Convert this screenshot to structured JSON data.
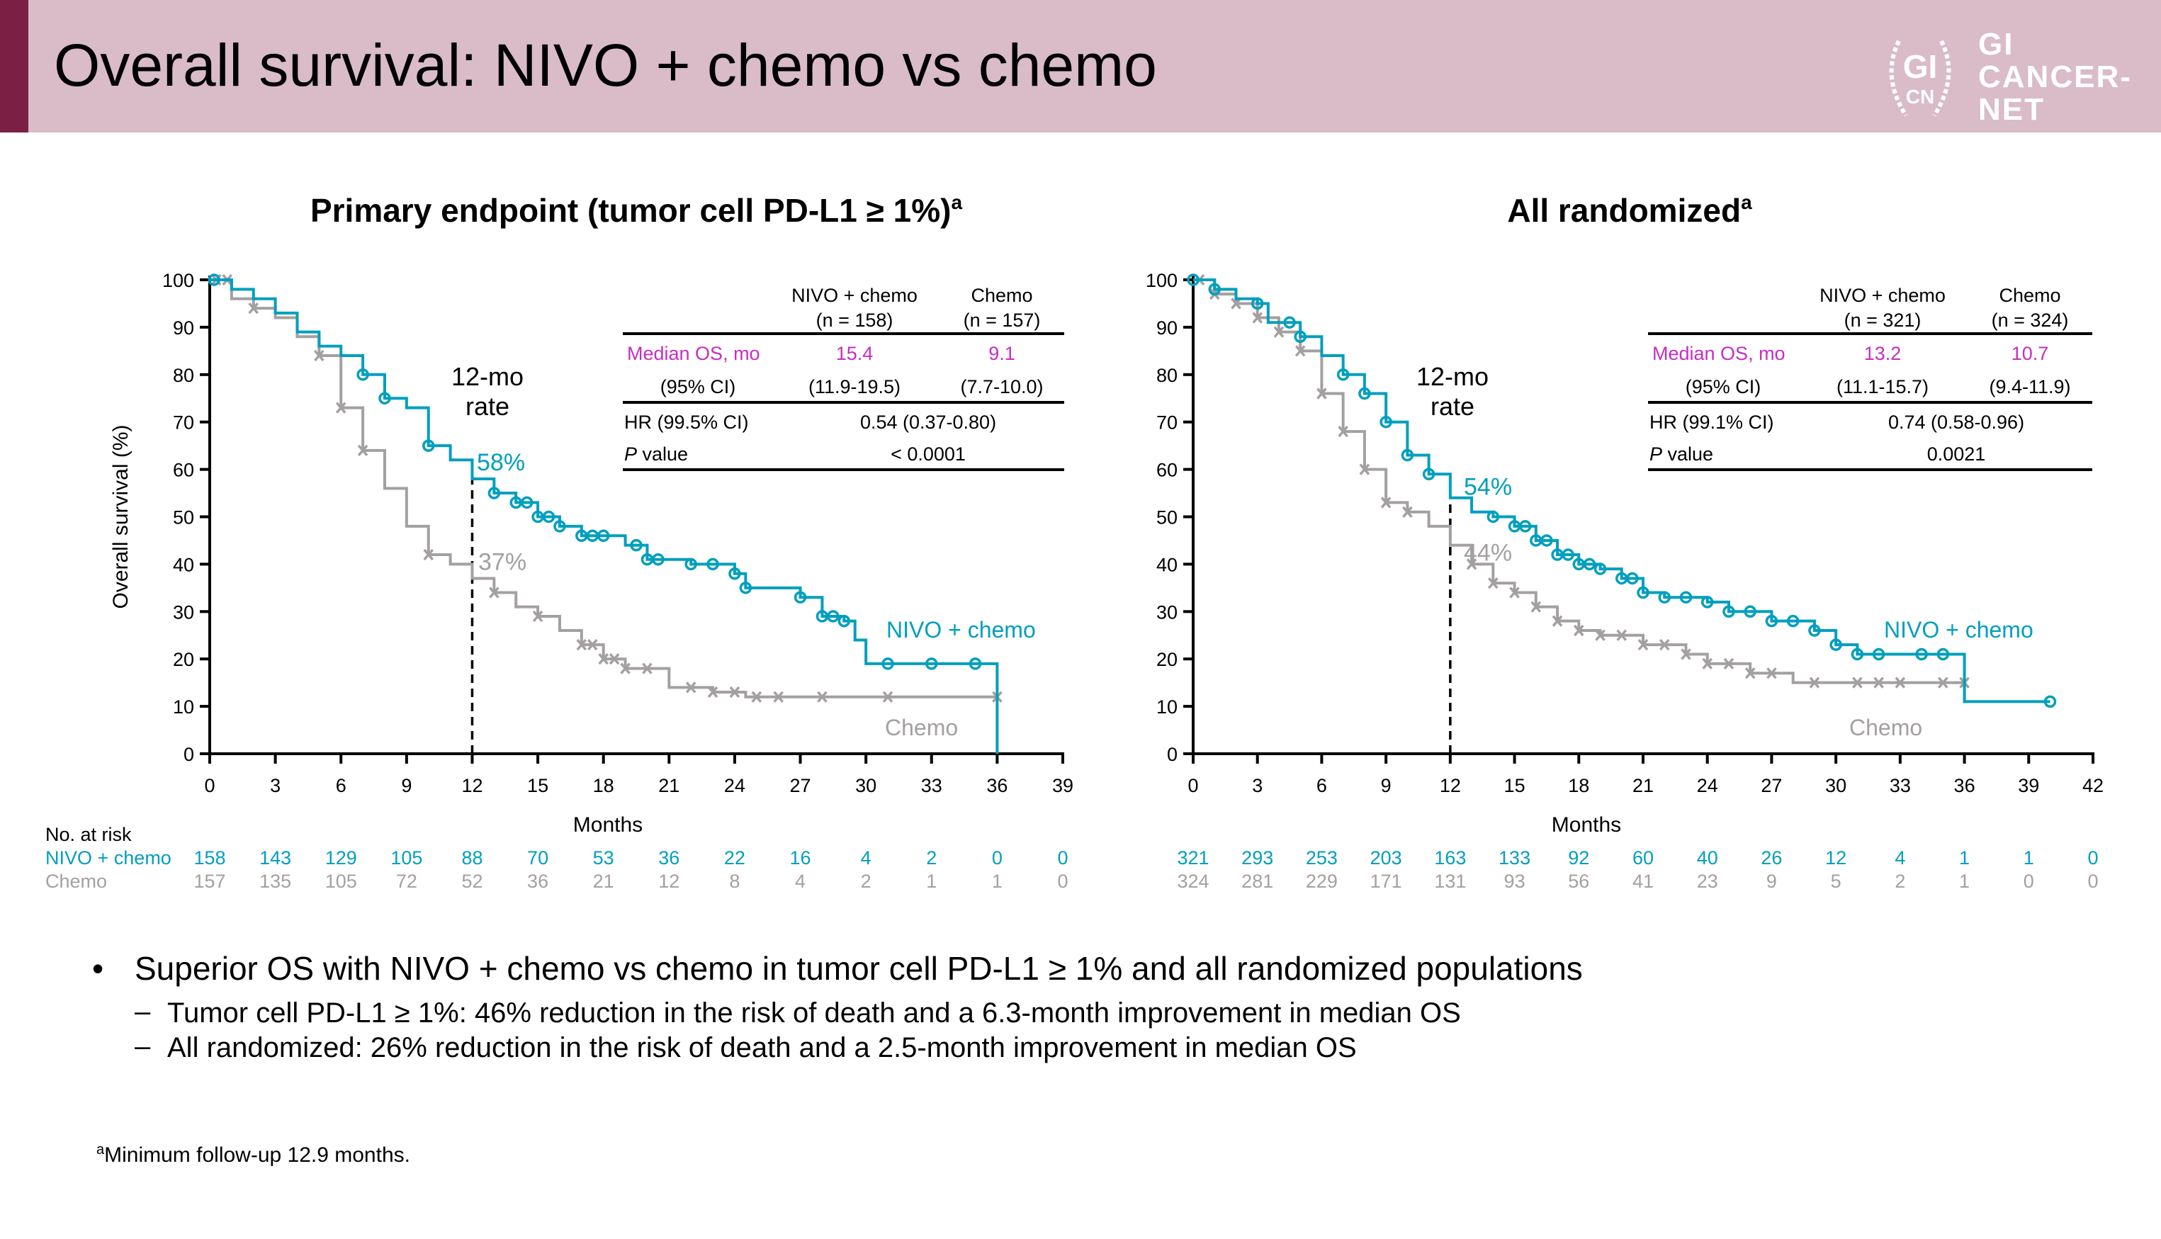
{
  "header": {
    "title": "Overall survival: NIVO + chemo vs chemo",
    "logo_text": "GI CANCER- NET",
    "logo_seal": "GI CN"
  },
  "colors": {
    "nivo": "#009fbd",
    "chemo": "#a4a0a2",
    "median": "#c62ec2",
    "header_bg": "#d9bcc8",
    "accent": "#7b1f45"
  },
  "at_risk_label": "No. at risk",
  "chart_data": [
    {
      "type": "line",
      "step": true,
      "title": "Primary endpoint (tumor cell PD-L1 ≥ 1%)",
      "title_sup": "a",
      "xlabel": "Months",
      "ylabel": "Overall survival (%)",
      "xlim": [
        0,
        39
      ],
      "ylim": [
        0,
        100
      ],
      "xticks": [
        0,
        3,
        6,
        9,
        12,
        15,
        18,
        21,
        24,
        27,
        30,
        33,
        36,
        39
      ],
      "yticks": [
        0,
        10,
        20,
        30,
        40,
        50,
        60,
        70,
        80,
        90,
        100
      ],
      "landmark": {
        "month": 12,
        "label_line1": "12-mo",
        "label_line2": "rate",
        "nivo_label": "58%",
        "chemo_label": "37%"
      },
      "series": [
        {
          "name": "NIVO + chemo",
          "key": "nivo",
          "marker": "circle",
          "points": [
            [
              0,
              100
            ],
            [
              1,
              98
            ],
            [
              2,
              96
            ],
            [
              3,
              93
            ],
            [
              4,
              89
            ],
            [
              5,
              86
            ],
            [
              6,
              84
            ],
            [
              7,
              80
            ],
            [
              8,
              75
            ],
            [
              9,
              73
            ],
            [
              10,
              65
            ],
            [
              11,
              62
            ],
            [
              12,
              58
            ],
            [
              13,
              55
            ],
            [
              14,
              53
            ],
            [
              15,
              50
            ],
            [
              16,
              48
            ],
            [
              17,
              46
            ],
            [
              18,
              46
            ],
            [
              19,
              44
            ],
            [
              20,
              41
            ],
            [
              22,
              40
            ],
            [
              24,
              38
            ],
            [
              24.5,
              35
            ],
            [
              27,
              33
            ],
            [
              28,
              29
            ],
            [
              29,
              28
            ],
            [
              29.5,
              24
            ],
            [
              30,
              19
            ],
            [
              36,
              19
            ],
            [
              36,
              0
            ]
          ],
          "censored": [
            0.2,
            7,
            8,
            10,
            13,
            14,
            14.5,
            15,
            15.5,
            16,
            17,
            17.5,
            18,
            19.5,
            20,
            20.5,
            22,
            23,
            24,
            24.5,
            27,
            28,
            28.5,
            29,
            31,
            33,
            35
          ]
        },
        {
          "name": "Chemo",
          "key": "chemo",
          "marker": "x",
          "points": [
            [
              0,
              100
            ],
            [
              1,
              96
            ],
            [
              2,
              94
            ],
            [
              3,
              92
            ],
            [
              4,
              88
            ],
            [
              5,
              84
            ],
            [
              6,
              73
            ],
            [
              7,
              64
            ],
            [
              8,
              56
            ],
            [
              9,
              48
            ],
            [
              10,
              42
            ],
            [
              11,
              40
            ],
            [
              12,
              37
            ],
            [
              13,
              34
            ],
            [
              14,
              31
            ],
            [
              15,
              29
            ],
            [
              16,
              26
            ],
            [
              17,
              23
            ],
            [
              18,
              20
            ],
            [
              19,
              18
            ],
            [
              20,
              18
            ],
            [
              21,
              14
            ],
            [
              23,
              13
            ],
            [
              24.5,
              12
            ],
            [
              36,
              12
            ]
          ],
          "censored": [
            0.3,
            0.8,
            2,
            5,
            6,
            7,
            10,
            13,
            15,
            17,
            17.5,
            18,
            18.5,
            19,
            20,
            22,
            23,
            24,
            25,
            26,
            28,
            31,
            36
          ]
        }
      ],
      "stats": {
        "col1": "NIVO + chemo",
        "col1_n": "(n = 158)",
        "col2": "Chemo",
        "col2_n": "(n = 157)",
        "median_label": "Median OS, mo",
        "median1": "15.4",
        "median2": "9.1",
        "ci_label": "(95% CI)",
        "ci1": "(11.9-19.5)",
        "ci2": "(7.7-10.0)",
        "hr_label": "HR (99.5% CI)",
        "hr": "0.54 (0.37-0.80)",
        "p_label_italic": "P",
        "p_label": " value",
        "p": "< 0.0001"
      },
      "curve_labels": {
        "nivo": "NIVO + chemo",
        "chemo": "Chemo"
      },
      "at_risk": {
        "nivo_label": "NIVO + chemo",
        "chemo_label": "Chemo",
        "nivo": [
          158,
          143,
          129,
          105,
          88,
          70,
          53,
          36,
          22,
          16,
          4,
          2,
          0,
          0
        ],
        "chemo": [
          157,
          135,
          105,
          72,
          52,
          36,
          21,
          12,
          8,
          4,
          2,
          1,
          1,
          0
        ]
      }
    },
    {
      "type": "line",
      "step": true,
      "title": "All randomized",
      "title_sup": "a",
      "xlabel": "Months",
      "ylabel": "",
      "xlim": [
        0,
        42
      ],
      "ylim": [
        0,
        100
      ],
      "xticks": [
        0,
        3,
        6,
        9,
        12,
        15,
        18,
        21,
        24,
        27,
        30,
        33,
        36,
        39,
        42
      ],
      "yticks": [
        0,
        10,
        20,
        30,
        40,
        50,
        60,
        70,
        80,
        90,
        100
      ],
      "landmark": {
        "month": 12,
        "label_line1": "12-mo",
        "label_line2": "rate",
        "nivo_label": "54%",
        "chemo_label": "44%"
      },
      "series": [
        {
          "name": "NIVO + chemo",
          "key": "nivo",
          "marker": "circle",
          "points": [
            [
              0,
              100
            ],
            [
              1,
              98
            ],
            [
              2,
              96
            ],
            [
              3,
              95
            ],
            [
              3.5,
              91
            ],
            [
              5,
              88
            ],
            [
              6,
              84
            ],
            [
              7,
              80
            ],
            [
              8,
              76
            ],
            [
              9,
              70
            ],
            [
              10,
              63
            ],
            [
              11,
              59
            ],
            [
              12,
              54
            ],
            [
              13,
              51
            ],
            [
              14,
              50
            ],
            [
              15,
              48
            ],
            [
              16,
              45
            ],
            [
              17,
              42
            ],
            [
              18,
              40
            ],
            [
              19,
              39
            ],
            [
              20,
              37
            ],
            [
              21,
              34
            ],
            [
              22,
              33
            ],
            [
              24,
              32
            ],
            [
              25,
              30
            ],
            [
              27,
              28
            ],
            [
              29,
              26
            ],
            [
              30,
              23
            ],
            [
              31,
              21
            ],
            [
              35,
              21
            ],
            [
              36,
              11
            ],
            [
              40,
              11
            ]
          ],
          "censored": [
            0,
            1,
            3,
            4.5,
            5,
            7,
            8,
            9,
            10,
            11,
            14,
            15,
            15.5,
            16,
            16.5,
            17,
            17.5,
            18,
            18.5,
            19,
            20,
            20.5,
            21,
            22,
            23,
            24,
            25,
            26,
            27,
            28,
            29,
            30,
            31,
            32,
            34,
            35,
            40
          ]
        },
        {
          "name": "Chemo",
          "key": "chemo",
          "marker": "x",
          "points": [
            [
              0,
              100
            ],
            [
              1,
              97
            ],
            [
              2,
              95
            ],
            [
              3,
              92
            ],
            [
              4,
              89
            ],
            [
              5,
              85
            ],
            [
              6,
              76
            ],
            [
              7,
              68
            ],
            [
              8,
              60
            ],
            [
              9,
              53
            ],
            [
              10,
              51
            ],
            [
              11,
              48
            ],
            [
              12,
              44
            ],
            [
              13,
              40
            ],
            [
              14,
              36
            ],
            [
              15,
              34
            ],
            [
              16,
              31
            ],
            [
              17,
              28
            ],
            [
              18,
              26
            ],
            [
              19,
              25
            ],
            [
              21,
              23
            ],
            [
              23,
              21
            ],
            [
              24,
              19
            ],
            [
              26,
              17
            ],
            [
              28,
              15
            ],
            [
              36,
              15
            ]
          ],
          "censored": [
            0.3,
            1,
            2,
            3,
            4,
            5,
            6,
            7,
            8,
            9,
            10,
            13,
            14,
            15,
            16,
            17,
            18,
            19,
            20,
            21,
            22,
            23,
            24,
            25,
            26,
            27,
            29,
            31,
            32,
            33,
            35,
            36
          ]
        }
      ],
      "stats": {
        "col1": "NIVO + chemo",
        "col1_n": "(n = 321)",
        "col2": "Chemo",
        "col2_n": "(n = 324)",
        "median_label": "Median OS, mo",
        "median1": "13.2",
        "median2": "10.7",
        "ci_label": "(95% CI)",
        "ci1": "(11.1-15.7)",
        "ci2": "(9.4-11.9)",
        "hr_label": "HR (99.1% CI)",
        "hr": "0.74 (0.58-0.96)",
        "p_label_italic": "P",
        "p_label": " value",
        "p": "0.0021"
      },
      "curve_labels": {
        "nivo": "NIVO + chemo",
        "chemo": "Chemo"
      },
      "at_risk": {
        "nivo": [
          321,
          293,
          253,
          203,
          163,
          133,
          92,
          60,
          40,
          26,
          12,
          4,
          1,
          1,
          0
        ],
        "chemo": [
          324,
          281,
          229,
          171,
          131,
          93,
          56,
          41,
          23,
          9,
          5,
          2,
          1,
          0,
          0
        ]
      }
    }
  ],
  "bullets": {
    "main": "Superior OS with NIVO + chemo vs chemo in tumor cell PD-L1 ≥ 1% and all randomized populations",
    "sub": [
      "Tumor cell PD-L1 ≥ 1%: 46% reduction in the risk of death and a 6.3-month improvement in median OS",
      "All randomized: 26% reduction in the risk of death and a 2.5-month improvement in median OS"
    ]
  },
  "footnote": {
    "sup": "a",
    "text": "Minimum follow-up 12.9 months."
  }
}
